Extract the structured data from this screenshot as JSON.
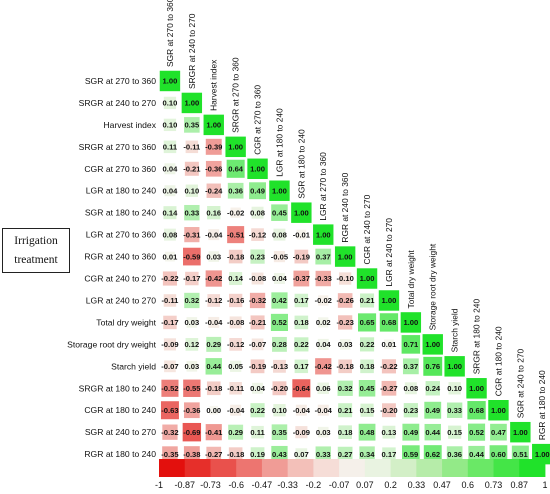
{
  "note_box": {
    "line1": "Irrigation",
    "line2": "treatment"
  },
  "chart_data": {
    "type": "heatmap",
    "layout": "lower-triangular correlation matrix",
    "variables": [
      "SGR at 270 to 360",
      "SRGR at 240 to 270",
      "Harvest index",
      "SRGR at 270 to 360",
      "CGR at 270 to 360",
      "LGR at 180 to 240",
      "SGR at 180 to 240",
      "LGR at 270 to 360",
      "RGR at 240 to 360",
      "CGR at 240 to 270",
      "LGR at 240 to 270",
      "Total dry weight",
      "Storage root dry weight",
      "Starch yield",
      "SRGR at 180 to 240",
      "CGR at 180 to 240",
      "SGR at 240 to 270",
      "RGR at 180 to 240"
    ],
    "matrix": [
      [
        1.0
      ],
      [
        0.1,
        1.0
      ],
      [
        0.1,
        0.35,
        1.0
      ],
      [
        0.11,
        -0.11,
        -0.39,
        1.0
      ],
      [
        0.04,
        -0.21,
        -0.36,
        0.64,
        1.0
      ],
      [
        0.04,
        0.1,
        -0.24,
        0.36,
        0.49,
        1.0
      ],
      [
        0.14,
        0.33,
        0.16,
        -0.02,
        0.08,
        0.45,
        1.0
      ],
      [
        0.08,
        -0.31,
        -0.04,
        -0.51,
        -0.12,
        0.08,
        -0.01,
        1.0
      ],
      [
        0.01,
        -0.59,
        0.03,
        -0.18,
        0.23,
        -0.05,
        -0.19,
        0.37,
        1.0
      ],
      [
        -0.22,
        -0.17,
        -0.42,
        0.14,
        -0.08,
        0.04,
        -0.37,
        -0.33,
        -0.1,
        1.0
      ],
      [
        -0.11,
        0.32,
        -0.12,
        -0.16,
        -0.32,
        0.42,
        0.17,
        -0.02,
        -0.26,
        0.21,
        1.0
      ],
      [
        -0.17,
        0.03,
        -0.04,
        -0.08,
        -0.21,
        0.52,
        0.18,
        0.02,
        -0.23,
        0.65,
        0.68,
        1.0
      ],
      [
        -0.09,
        0.12,
        0.29,
        -0.12,
        -0.07,
        0.28,
        0.22,
        0.04,
        0.03,
        0.22,
        0.01,
        0.71,
        1.0
      ],
      [
        -0.07,
        0.03,
        0.44,
        0.05,
        -0.19,
        -0.13,
        0.17,
        -0.42,
        -0.18,
        0.18,
        -0.22,
        0.37,
        0.76,
        1.0
      ],
      [
        -0.52,
        -0.55,
        -0.18,
        -0.11,
        0.04,
        -0.2,
        -0.64,
        0.06,
        0.32,
        0.45,
        -0.27,
        0.08,
        0.24,
        0.1,
        1.0
      ],
      [
        -0.63,
        -0.36,
        0.0,
        -0.04,
        0.22,
        0.1,
        -0.04,
        -0.04,
        0.21,
        0.15,
        -0.2,
        0.23,
        0.49,
        0.33,
        0.68,
        1.0
      ],
      [
        -0.32,
        -0.69,
        -0.41,
        0.29,
        0.11,
        0.35,
        -0.09,
        0.03,
        0.18,
        0.48,
        0.13,
        0.49,
        0.44,
        0.15,
        0.52,
        0.47,
        1.0
      ],
      [
        -0.35,
        -0.38,
        -0.27,
        -0.18,
        0.19,
        0.43,
        0.07,
        0.33,
        0.27,
        0.34,
        0.17,
        0.59,
        0.62,
        0.36,
        0.44,
        0.6,
        0.51,
        1.0
      ]
    ],
    "legend": {
      "placement": "bottom",
      "ticks": [
        -1,
        -0.87,
        -0.73,
        -0.6,
        -0.47,
        -0.33,
        -0.2,
        -0.07,
        0.07,
        0.2,
        0.33,
        0.47,
        0.6,
        0.73,
        0.87,
        1
      ],
      "colors": [
        "#e3100d",
        "#e62f2a",
        "#e9514c",
        "#ed7570",
        "#f09c96",
        "#f3c0b9",
        "#f6ddd7",
        "#f5f0ea",
        "#e9f3e1",
        "#d3efc7",
        "#b6eca9",
        "#93ea88",
        "#6ae866",
        "#44e547",
        "#20e22a"
      ]
    },
    "colors": {
      "negative": "#e3100d",
      "neutral": "#f7f6ef",
      "positive": "#20e22a"
    }
  }
}
